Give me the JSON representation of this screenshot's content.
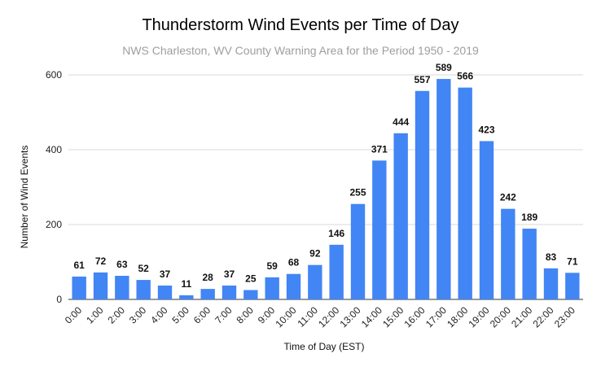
{
  "chart_data": {
    "type": "bar",
    "title": "Thunderstorm Wind Events per Time of Day",
    "subtitle": "NWS Charleston, WV County Warning Area for the Period 1950 - 2019",
    "xlabel": "Time of Day (EST)",
    "ylabel": "Number of Wind Events",
    "ylim": [
      0,
      600
    ],
    "yticks": [
      0,
      200,
      400,
      600
    ],
    "grid": true,
    "bar_color": "#4285f4",
    "categories": [
      "0:00",
      "1:00",
      "2:00",
      "3:00",
      "4:00",
      "5:00",
      "6:00",
      "7:00",
      "8:00",
      "9:00",
      "10:00",
      "11:00",
      "12:00",
      "13:00",
      "14:00",
      "15:00",
      "16:00",
      "17:00",
      "18:00",
      "19:00",
      "20:00",
      "21:00",
      "22:00",
      "23:00"
    ],
    "values": [
      61,
      72,
      63,
      52,
      37,
      11,
      28,
      37,
      25,
      59,
      68,
      92,
      146,
      255,
      371,
      444,
      557,
      589,
      566,
      423,
      242,
      189,
      83,
      71
    ]
  }
}
